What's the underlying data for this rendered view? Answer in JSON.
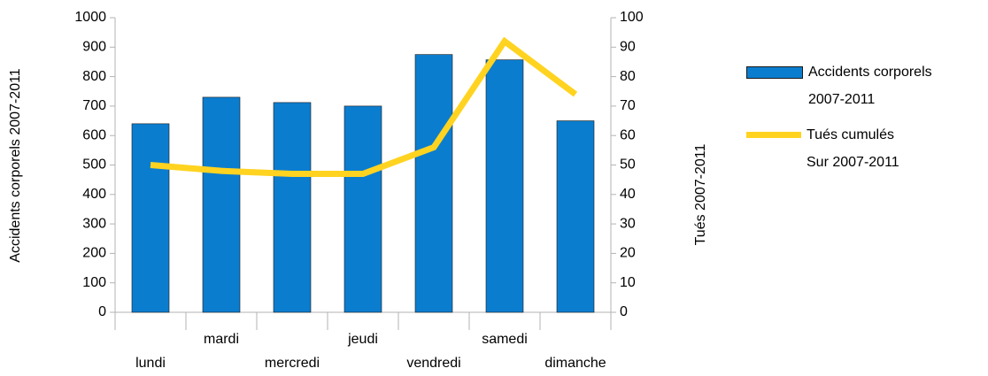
{
  "chart_data": {
    "type": "bar_line",
    "categories": [
      "lundi",
      "mardi",
      "mercredi",
      "jeudi",
      "vendredi",
      "samedi",
      "dimanche"
    ],
    "series": [
      {
        "name": "Accidents corporels\n2007-2011",
        "type": "bar",
        "color": "#0b7dcf",
        "values": [
          640,
          730,
          712,
          700,
          875,
          857,
          650
        ]
      },
      {
        "name": "Tués cumulés\nSur 2007-2011",
        "type": "line",
        "axis": "y2",
        "color": "#ffd320",
        "values": [
          50,
          48,
          47,
          47,
          56,
          92,
          74
        ]
      }
    ],
    "ylabel": "Accidents corporels 2007-2011",
    "y2label": "Tués 2007-2011",
    "ylim": [
      0,
      1000
    ],
    "yticks": [
      0,
      100,
      200,
      300,
      400,
      500,
      600,
      700,
      800,
      900,
      1000
    ],
    "y2lim": [
      0,
      100
    ],
    "y2ticks": [
      0,
      10,
      20,
      30,
      40,
      50,
      60,
      70,
      80,
      90,
      100
    ],
    "grid": false,
    "legend": "right"
  }
}
